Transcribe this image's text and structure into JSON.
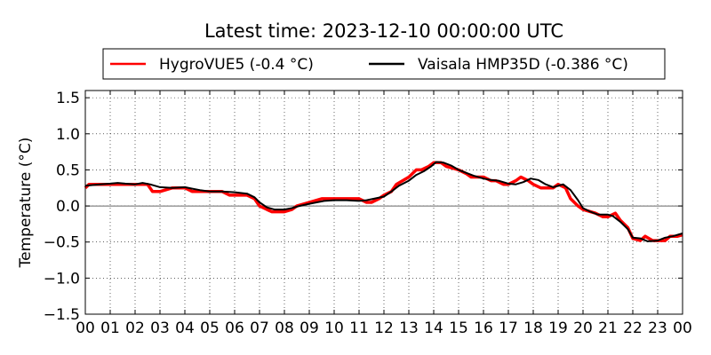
{
  "chart_data": {
    "type": "line",
    "title": "Latest time: 2023-12-10 00:00:00 UTC",
    "xlabel": "",
    "ylabel": "Temperature (°C)",
    "xlim": [
      0,
      24
    ],
    "ylim": [
      -1.5,
      1.6
    ],
    "xticks": [
      0,
      1,
      2,
      3,
      4,
      5,
      6,
      7,
      8,
      9,
      10,
      11,
      12,
      13,
      14,
      15,
      16,
      17,
      18,
      19,
      20,
      21,
      22,
      23,
      24
    ],
    "xtick_labels": [
      "00",
      "01",
      "02",
      "03",
      "04",
      "05",
      "06",
      "07",
      "08",
      "09",
      "10",
      "11",
      "12",
      "13",
      "14",
      "15",
      "16",
      "17",
      "18",
      "19",
      "20",
      "21",
      "22",
      "23",
      "00"
    ],
    "yticks": [
      -1.5,
      -1.0,
      -0.5,
      0.0,
      0.5,
      1.0,
      1.5
    ],
    "ytick_labels": [
      "−1.5",
      "−1.0",
      "−0.5",
      "0.0",
      "0.5",
      "1.0",
      "1.5"
    ],
    "grid": true,
    "zero_line": true,
    "legend_position": "top",
    "series": [
      {
        "name": "HygroVUE5 (-0.4 °C)",
        "color": "#ff0000",
        "x": [
          0,
          0.15,
          0.3,
          0.5,
          1,
          1.5,
          2,
          2.3,
          2.5,
          2.7,
          3,
          3.5,
          4,
          4.3,
          4.5,
          5,
          5.5,
          5.8,
          6,
          6.5,
          6.8,
          7,
          7.3,
          7.5,
          8,
          8.3,
          8.5,
          9,
          9.5,
          10,
          10.5,
          11,
          11.3,
          11.5,
          11.8,
          12,
          12.3,
          12.5,
          13,
          13.3,
          13.5,
          13.8,
          14,
          14.3,
          14.5,
          15,
          15.3,
          15.5,
          16,
          16.3,
          16.5,
          16.8,
          17,
          17.3,
          17.5,
          17.8,
          18,
          18.3,
          18.5,
          18.8,
          19,
          19.3,
          19.5,
          19.8,
          20,
          20.3,
          20.5,
          20.8,
          21,
          21.3,
          21.5,
          21.8,
          22,
          22.3,
          22.5,
          22.8,
          23,
          23.3,
          23.5,
          23.8,
          24
        ],
        "y": [
          0.25,
          0.3,
          0.3,
          0.3,
          0.3,
          0.3,
          0.3,
          0.3,
          0.3,
          0.2,
          0.2,
          0.25,
          0.25,
          0.2,
          0.2,
          0.2,
          0.2,
          0.15,
          0.15,
          0.15,
          0.1,
          0.0,
          -0.05,
          -0.08,
          -0.08,
          -0.05,
          0.0,
          0.05,
          0.1,
          0.1,
          0.1,
          0.1,
          0.05,
          0.05,
          0.1,
          0.15,
          0.2,
          0.3,
          0.4,
          0.5,
          0.5,
          0.55,
          0.6,
          0.6,
          0.55,
          0.5,
          0.45,
          0.4,
          0.4,
          0.35,
          0.35,
          0.3,
          0.3,
          0.35,
          0.4,
          0.35,
          0.3,
          0.25,
          0.25,
          0.25,
          0.3,
          0.25,
          0.1,
          0.0,
          -0.05,
          -0.08,
          -0.1,
          -0.15,
          -0.15,
          -0.1,
          -0.2,
          -0.3,
          -0.45,
          -0.48,
          -0.42,
          -0.48,
          -0.48,
          -0.48,
          -0.42,
          -0.42,
          -0.4
        ]
      },
      {
        "name": "Vaisala HMP35D (-0.386 °C)",
        "color": "#000000",
        "x": [
          0,
          0.3,
          0.6,
          1,
          1.3,
          1.6,
          2,
          2.3,
          2.6,
          3,
          3.5,
          4,
          4.3,
          4.6,
          5,
          5.5,
          6,
          6.5,
          6.8,
          7,
          7.3,
          7.6,
          8,
          8.3,
          8.6,
          9,
          9.3,
          9.6,
          10,
          10.5,
          11,
          11.3,
          11.6,
          12,
          12.3,
          12.6,
          13,
          13.3,
          13.6,
          13.9,
          14.1,
          14.4,
          14.7,
          15,
          15.3,
          15.6,
          16,
          16.3,
          16.6,
          17,
          17.3,
          17.6,
          17.9,
          18.2,
          18.5,
          18.8,
          19,
          19.2,
          19.5,
          19.8,
          20,
          20.3,
          20.6,
          21,
          21.2,
          21.5,
          21.8,
          22,
          22.3,
          22.6,
          23,
          23.3,
          23.6,
          24
        ],
        "y": [
          0.28,
          0.29,
          0.3,
          0.31,
          0.32,
          0.31,
          0.3,
          0.32,
          0.3,
          0.26,
          0.25,
          0.26,
          0.24,
          0.22,
          0.2,
          0.2,
          0.19,
          0.17,
          0.12,
          0.05,
          -0.02,
          -0.05,
          -0.05,
          -0.03,
          0.0,
          0.03,
          0.05,
          0.07,
          0.08,
          0.08,
          0.07,
          0.08,
          0.1,
          0.13,
          0.2,
          0.28,
          0.35,
          0.43,
          0.48,
          0.55,
          0.61,
          0.6,
          0.56,
          0.5,
          0.46,
          0.42,
          0.38,
          0.36,
          0.35,
          0.31,
          0.3,
          0.33,
          0.38,
          0.36,
          0.3,
          0.26,
          0.28,
          0.3,
          0.22,
          0.08,
          -0.03,
          -0.08,
          -0.12,
          -0.12,
          -0.14,
          -0.22,
          -0.32,
          -0.44,
          -0.45,
          -0.49,
          -0.48,
          -0.44,
          -0.42,
          -0.38
        ]
      }
    ]
  }
}
